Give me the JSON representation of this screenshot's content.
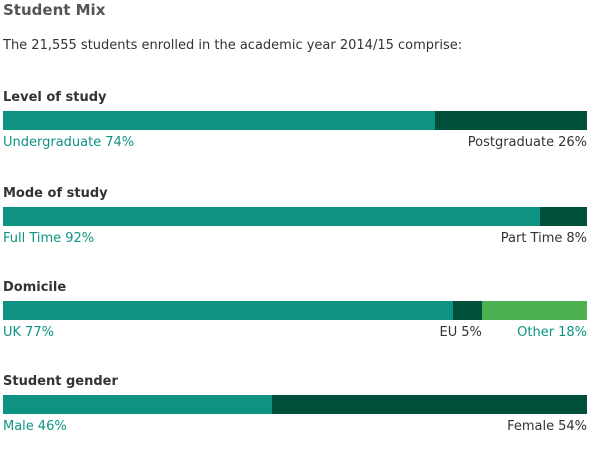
{
  "title": "Student Mix",
  "intro": "The 21,555 students enrolled in the academic year 2014/15 comprise:",
  "colors": {
    "teal": "#0e9383",
    "dark_green": "#004f3b",
    "light_green": "#4caf50",
    "dark_text": "#333333"
  },
  "chart_data": [
    {
      "type": "bar",
      "title": "Level of study",
      "categories": [
        "Undergraduate",
        "Postgraduate"
      ],
      "values": [
        74,
        26
      ],
      "labels": [
        "74%",
        "26%"
      ]
    },
    {
      "type": "bar",
      "title": "Mode of study",
      "categories": [
        "Full Time",
        "Part Time"
      ],
      "values": [
        92,
        8
      ],
      "labels": [
        "92%",
        "8%"
      ]
    },
    {
      "type": "bar",
      "title": "Domicile",
      "categories": [
        "UK",
        "EU",
        "Other"
      ],
      "values": [
        77,
        5,
        18
      ],
      "labels": [
        "77%",
        "5%",
        "18%"
      ]
    },
    {
      "type": "bar",
      "title": "Student gender",
      "categories": [
        "Male",
        "Female"
      ],
      "values": [
        46,
        54
      ],
      "labels": [
        "46%",
        "54%"
      ]
    }
  ]
}
